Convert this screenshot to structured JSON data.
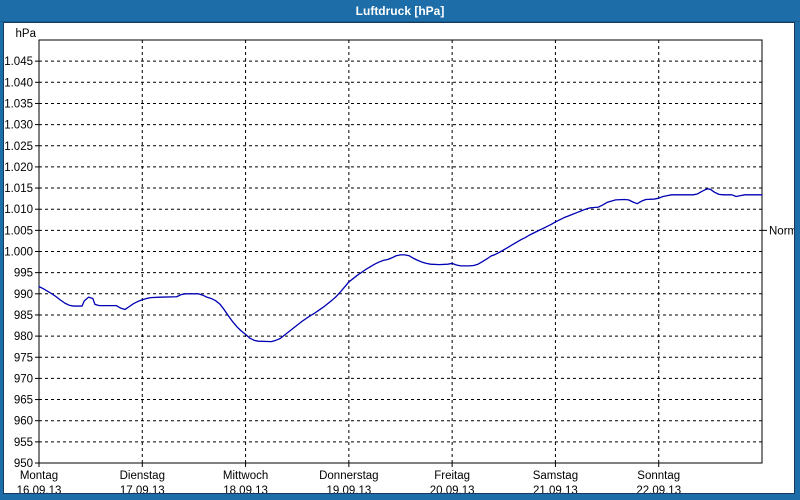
{
  "window": {
    "title": "Luftdruck [hPa]"
  },
  "colors": {
    "titlebar_bg": "#1c6da8",
    "titlebar_text": "#ffffff",
    "panel_bg": "#ffffff",
    "panel_border": "#16395f",
    "plot_border": "#000000",
    "grid": "#000000",
    "axis_text": "#000000",
    "line": "#0000b4"
  },
  "y_axis": {
    "unit_label": "hPa",
    "min": 950,
    "max": 1050,
    "tick_step": 5,
    "tick_labels_top_to_bottom": [
      "1.045",
      "1.040",
      "1.035",
      "1.030",
      "1.025",
      "1.020",
      "1.015",
      "1.010",
      "1.005",
      "1.000",
      "995",
      "990",
      "985",
      "980",
      "975",
      "970",
      "965",
      "960",
      "955",
      "950"
    ]
  },
  "x_axis": {
    "days": [
      {
        "name": "Montag",
        "date": "16.09.13"
      },
      {
        "name": "Dienstag",
        "date": "17.09.13"
      },
      {
        "name": "Mittwoch",
        "date": "18.09.13"
      },
      {
        "name": "Donnerstag",
        "date": "19.09.13"
      },
      {
        "name": "Freitag",
        "date": "20.09.13"
      },
      {
        "name": "Samstag",
        "date": "21.09.13"
      },
      {
        "name": "Sonntag",
        "date": "22.09.13"
      }
    ]
  },
  "normal_marker": {
    "label": "Normal",
    "value": 1005
  },
  "chart_data": {
    "type": "line",
    "title": "Luftdruck [hPa]",
    "xlabel": "",
    "ylabel": "hPa",
    "ylim": [
      950,
      1050
    ],
    "ytick_step": 5,
    "grid": "dashed",
    "legend_position": "none",
    "x_unit": "hours since 16.09.2013 00:00 (24 h per day, 7 days)",
    "reference_line": {
      "label": "Normal",
      "value": 1005
    },
    "series": [
      {
        "name": "Luftdruck",
        "color": "#0000b4",
        "points": [
          [
            0,
            991.7
          ],
          [
            1,
            991.2
          ],
          [
            2,
            990.6
          ],
          [
            3,
            990.0
          ],
          [
            4,
            989.3
          ],
          [
            5,
            988.5
          ],
          [
            6,
            987.8
          ],
          [
            7,
            987.3
          ],
          [
            8,
            987.1
          ],
          [
            10,
            987.1
          ],
          [
            10.5,
            988.3
          ],
          [
            11.5,
            989.2
          ],
          [
            12.5,
            988.9
          ],
          [
            13,
            987.5
          ],
          [
            14,
            987.2
          ],
          [
            18,
            987.2
          ],
          [
            19,
            986.6
          ],
          [
            20,
            986.3
          ],
          [
            21,
            987.0
          ],
          [
            22,
            987.7
          ],
          [
            23,
            988.2
          ],
          [
            24,
            988.6
          ],
          [
            25,
            988.9
          ],
          [
            26,
            989.1
          ],
          [
            28,
            989.2
          ],
          [
            32,
            989.3
          ],
          [
            33,
            989.8
          ],
          [
            34,
            990.0
          ],
          [
            37,
            990.0
          ],
          [
            38,
            989.7
          ],
          [
            39,
            989.2
          ],
          [
            40,
            988.9
          ],
          [
            41,
            988.4
          ],
          [
            42,
            987.6
          ],
          [
            43,
            986.3
          ],
          [
            44,
            984.8
          ],
          [
            45,
            983.4
          ],
          [
            46,
            982.2
          ],
          [
            47,
            981.2
          ],
          [
            48,
            980.4
          ],
          [
            49,
            979.5
          ],
          [
            50,
            979.0
          ],
          [
            51,
            978.8
          ],
          [
            54,
            978.7
          ],
          [
            55,
            979.0
          ],
          [
            56,
            979.4
          ],
          [
            57,
            980.2
          ],
          [
            58,
            981.0
          ],
          [
            59,
            981.8
          ],
          [
            60,
            982.6
          ],
          [
            61,
            983.4
          ],
          [
            62,
            984.1
          ],
          [
            63,
            984.8
          ],
          [
            64,
            985.4
          ],
          [
            65,
            986.1
          ],
          [
            66,
            986.8
          ],
          [
            67,
            987.6
          ],
          [
            68,
            988.4
          ],
          [
            69,
            989.3
          ],
          [
            70,
            990.4
          ],
          [
            71,
            991.6
          ],
          [
            72,
            992.8
          ],
          [
            73,
            993.6
          ],
          [
            74,
            994.4
          ],
          [
            75,
            995.1
          ],
          [
            76,
            995.8
          ],
          [
            77,
            996.4
          ],
          [
            78,
            997.0
          ],
          [
            79,
            997.5
          ],
          [
            80,
            997.9
          ],
          [
            81,
            998.1
          ],
          [
            82,
            998.5
          ],
          [
            83,
            999.0
          ],
          [
            84,
            999.2
          ],
          [
            85,
            999.2
          ],
          [
            86,
            999.0
          ],
          [
            87,
            998.4
          ],
          [
            88,
            997.9
          ],
          [
            89,
            997.5
          ],
          [
            90,
            997.2
          ],
          [
            91,
            997.0
          ],
          [
            93,
            996.9
          ],
          [
            95,
            997.0
          ],
          [
            96,
            997.2
          ],
          [
            97,
            996.8
          ],
          [
            98,
            996.6
          ],
          [
            100,
            996.6
          ],
          [
            101,
            996.7
          ],
          [
            102,
            997.0
          ],
          [
            103,
            997.6
          ],
          [
            104,
            998.2
          ],
          [
            105,
            998.9
          ],
          [
            106,
            999.3
          ],
          [
            107,
            999.8
          ],
          [
            108,
            1000.4
          ],
          [
            109,
            1001.0
          ],
          [
            110,
            1001.6
          ],
          [
            111,
            1002.2
          ],
          [
            112,
            1002.8
          ],
          [
            113,
            1003.3
          ],
          [
            114,
            1003.9
          ],
          [
            115,
            1004.4
          ],
          [
            116,
            1004.9
          ],
          [
            117,
            1005.4
          ],
          [
            118,
            1005.9
          ],
          [
            119,
            1006.4
          ],
          [
            120,
            1007.0
          ],
          [
            121,
            1007.5
          ],
          [
            122,
            1008.0
          ],
          [
            123,
            1008.4
          ],
          [
            124,
            1008.8
          ],
          [
            125,
            1009.2
          ],
          [
            126,
            1009.6
          ],
          [
            127,
            1010.0
          ],
          [
            128,
            1010.3
          ],
          [
            129,
            1010.4
          ],
          [
            130,
            1010.5
          ],
          [
            131,
            1011.0
          ],
          [
            132,
            1011.6
          ],
          [
            133,
            1011.9
          ],
          [
            134,
            1012.2
          ],
          [
            136,
            1012.3
          ],
          [
            137,
            1012.2
          ],
          [
            138,
            1011.7
          ],
          [
            139,
            1011.3
          ],
          [
            140,
            1011.9
          ],
          [
            141,
            1012.3
          ],
          [
            143,
            1012.4
          ],
          [
            144,
            1012.6
          ],
          [
            145,
            1013.0
          ],
          [
            146,
            1013.2
          ],
          [
            147,
            1013.4
          ],
          [
            152,
            1013.4
          ],
          [
            153,
            1013.6
          ],
          [
            154,
            1014.2
          ],
          [
            155,
            1014.7
          ],
          [
            155.5,
            1014.8
          ],
          [
            156,
            1014.7
          ],
          [
            157,
            1014.0
          ],
          [
            158,
            1013.5
          ],
          [
            159,
            1013.4
          ],
          [
            161,
            1013.4
          ],
          [
            162,
            1013.0
          ],
          [
            163,
            1013.2
          ],
          [
            164,
            1013.4
          ],
          [
            168,
            1013.4
          ]
        ]
      }
    ]
  }
}
